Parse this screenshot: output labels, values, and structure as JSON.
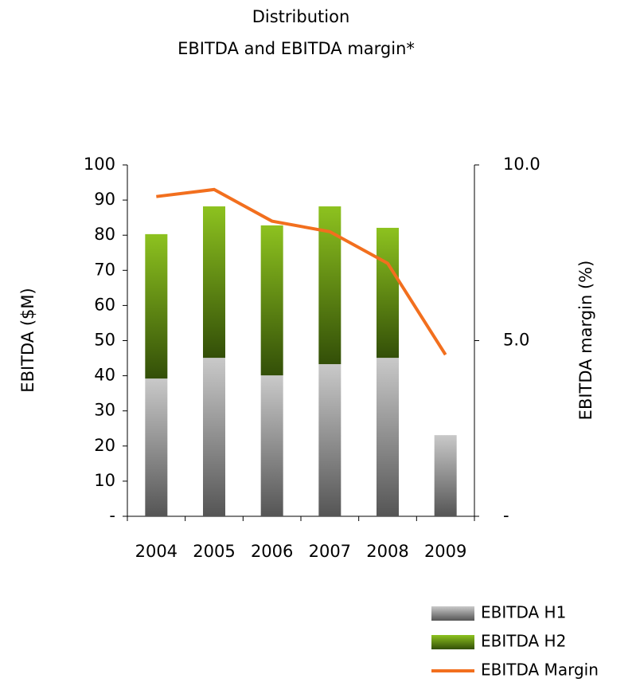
{
  "chart_data": {
    "type": "bar",
    "title": "Distribution",
    "subtitle": "EBITDA and EBITDA margin*",
    "ylabel": "EBITDA ($M)",
    "y2label": "EBITDA margin (%)",
    "categories": [
      "2004",
      "2005",
      "2006",
      "2007",
      "2008",
      "2009"
    ],
    "stacked": true,
    "series": [
      {
        "name": "EBITDA H1",
        "type": "bar",
        "color": [
          "#c9c9c9",
          "#555555"
        ],
        "values": [
          39.2,
          45.1,
          40.1,
          43.3,
          45.1,
          23.1
        ]
      },
      {
        "name": "EBITDA H2",
        "type": "bar",
        "color": [
          "#8dc21f",
          "#334f08"
        ],
        "values": [
          41.1,
          43.1,
          42.7,
          44.9,
          37.0,
          null
        ]
      },
      {
        "name": "EBITDA Margin",
        "type": "line",
        "axis": "y2",
        "color": "#f26f1e",
        "values": [
          9.1,
          9.3,
          8.4,
          8.1,
          7.2,
          4.6
        ]
      }
    ],
    "ylim": [
      0,
      100
    ],
    "yticks": [
      {
        "value": 0,
        "label": "-"
      },
      10,
      20,
      30,
      40,
      50,
      60,
      70,
      80,
      90,
      100
    ],
    "y2lim": [
      0,
      10
    ],
    "y2ticks": [
      {
        "value": 0,
        "label": "-"
      },
      {
        "value": 5,
        "label": "5.0"
      },
      {
        "value": 10,
        "label": "10.0"
      }
    ],
    "legend": "bottom-right"
  }
}
